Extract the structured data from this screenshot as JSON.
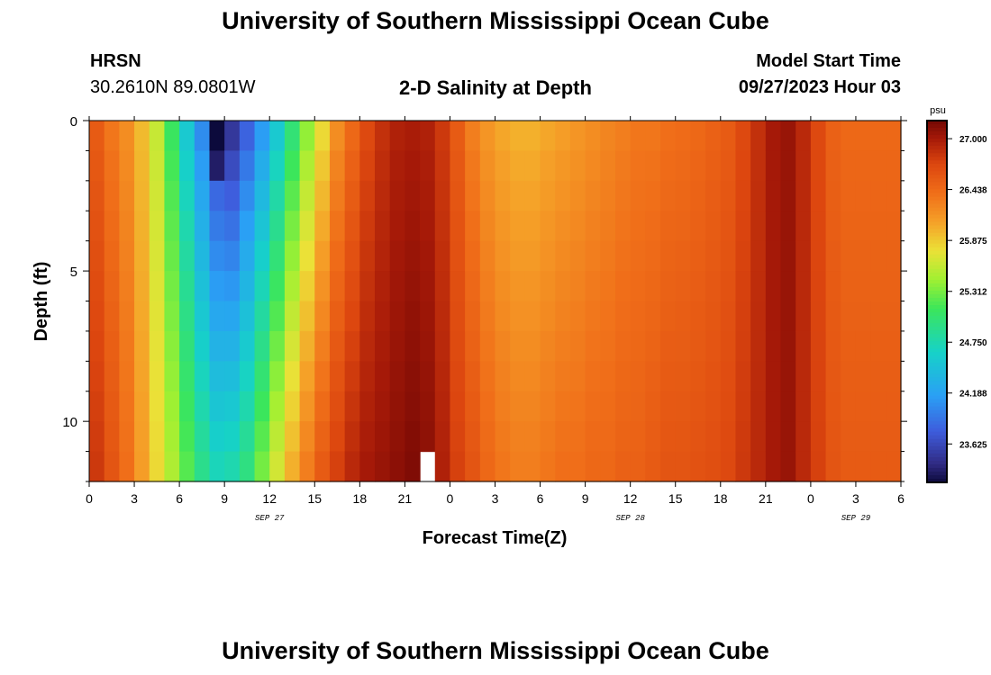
{
  "header": {
    "main_title": "University of Southern Mississippi Ocean Cube",
    "station": "HRSN",
    "coordinates": "30.2610N  89.0801W",
    "plot_title": "2-D Salinity at Depth",
    "model_start_label": "Model Start Time",
    "model_start_value": "09/27/2023 Hour 03"
  },
  "footer": {
    "repeat_title": "University of Southern Mississippi Ocean Cube"
  },
  "chart_data": {
    "type": "heatmap",
    "title": "2-D Salinity at Depth",
    "xlabel": "Forecast Time(Z)",
    "ylabel": "Depth (ft)",
    "xlim": [
      0,
      54
    ],
    "ylim": [
      0,
      12
    ],
    "y_inverted": true,
    "x_tick_labels": [
      "0",
      "3",
      "6",
      "9",
      "12",
      "15",
      "18",
      "21",
      "0",
      "3",
      "6",
      "9",
      "12",
      "15",
      "18",
      "21",
      "0",
      "3",
      "6"
    ],
    "date_labels": [
      {
        "label": "SEP 27",
        "at_hour": 12
      },
      {
        "label": "SEP 28",
        "at_hour": 36
      },
      {
        "label": "SEP 29",
        "at_hour": 51
      }
    ],
    "y_tick_labels": [
      {
        "depth": 0,
        "label": "0"
      },
      {
        "depth": 5,
        "label": "5"
      },
      {
        "depth": 10,
        "label": "10"
      }
    ],
    "colorbar": {
      "units": "psu",
      "min": 23.2,
      "max": 27.2,
      "tick_values": [
        27.0,
        26.438,
        25.875,
        25.312,
        24.75,
        24.188,
        23.625
      ],
      "tick_labels": [
        "27.000",
        "26.438",
        "25.875",
        "25.312",
        "24.750",
        "24.188",
        "23.625"
      ]
    },
    "time_columns": 54,
    "depth_rows": 12,
    "surface_salinity_by_hour": [
      26.55,
      26.35,
      26.2,
      25.95,
      25.6,
      25.1,
      24.55,
      24.05,
      23.6,
      23.5,
      23.8,
      24.15,
      24.55,
      25.0,
      25.4,
      25.8,
      26.2,
      26.45,
      26.7,
      26.85,
      26.95,
      26.98,
      26.95,
      26.8,
      26.55,
      26.3,
      26.15,
      26.05,
      26.0,
      26.0,
      26.05,
      26.1,
      26.15,
      26.2,
      26.25,
      26.3,
      26.35,
      26.35,
      26.4,
      26.42,
      26.45,
      26.5,
      26.55,
      26.7,
      26.85,
      27.0,
      27.05,
      26.9,
      26.7,
      26.5,
      26.45,
      26.45,
      26.45,
      26.45
    ],
    "bottom_salinity_by_hour": [
      26.8,
      26.6,
      26.4,
      26.1,
      25.8,
      25.5,
      25.2,
      24.9,
      24.7,
      24.75,
      24.95,
      25.3,
      25.65,
      26.0,
      26.3,
      26.55,
      26.75,
      26.9,
      27.0,
      27.05,
      27.1,
      27.15,
      27.1,
      26.95,
      26.75,
      26.6,
      26.45,
      26.35,
      26.3,
      26.3,
      26.35,
      26.4,
      26.4,
      26.45,
      26.45,
      26.5,
      26.5,
      26.55,
      26.6,
      26.6,
      26.62,
      26.65,
      26.7,
      26.8,
      26.9,
      27.0,
      27.05,
      26.9,
      26.75,
      26.6,
      26.55,
      26.55,
      26.55,
      26.55
    ],
    "min_column_hour": 8,
    "missing_cell": {
      "hour": 22,
      "depth_row": 11
    }
  }
}
